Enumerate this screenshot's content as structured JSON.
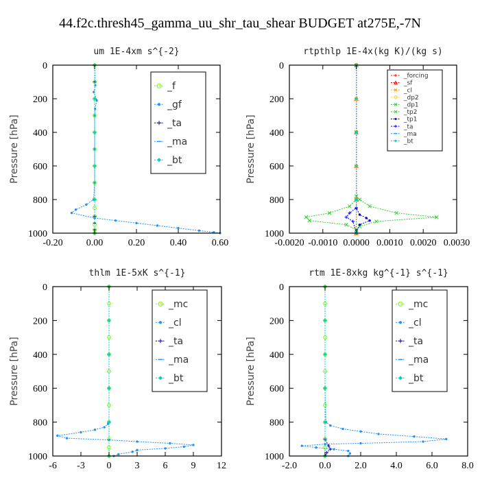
{
  "figure_title": "44.f2c.thresh45_gamma_uu_shr_tau_shear  BUDGET at275E,-7N",
  "chart_data": [
    {
      "type": "line",
      "title": "um   1E-4xm s^{-2}",
      "ylabel": "Pressure [hPa]",
      "xlim": [
        -0.2,
        0.6
      ],
      "ylim": [
        1000,
        0
      ],
      "xticks": [
        -0.2,
        0.0,
        0.2,
        0.4,
        0.6
      ],
      "xtick_labels": [
        "-0.20",
        "0.00",
        "0.20",
        "0.40",
        "0.60"
      ],
      "yticks": [
        0,
        200,
        400,
        600,
        800,
        1000
      ],
      "ytick_labels": [
        "0",
        "200",
        "400",
        "600",
        "800",
        "1000"
      ],
      "legend_position": "top-right",
      "series": [
        {
          "name": "_f",
          "color": "#7cfc00",
          "marker": "circle",
          "x": [
            0,
            0,
            0,
            0,
            0,
            0,
            0,
            0,
            0,
            0,
            0,
            0,
            0,
            0
          ],
          "y": [
            0,
            100,
            200,
            300,
            400,
            500,
            600,
            700,
            800,
            850,
            900,
            950,
            980,
            1000
          ]
        },
        {
          "name": "_gf",
          "color": "#1e90ff",
          "marker": "dot",
          "x": [
            0,
            0.003,
            -0.004,
            0.01,
            0.002,
            0,
            0,
            0,
            -0.005,
            -0.04,
            -0.09,
            -0.11,
            0.0,
            0.1,
            0.2,
            0.3,
            0.4,
            0.5,
            0.57,
            0.6
          ],
          "y": [
            0,
            120,
            160,
            210,
            260,
            300,
            500,
            700,
            800,
            830,
            860,
            880,
            910,
            925,
            940,
            955,
            970,
            985,
            995,
            1000
          ]
        },
        {
          "name": "_ta",
          "color": "#0000cd",
          "marker": "plus",
          "x": [
            0,
            0,
            0,
            0,
            0,
            0,
            0,
            0,
            0,
            0
          ],
          "y": [
            0,
            100,
            200,
            400,
            600,
            800,
            900,
            940,
            980,
            1000
          ]
        },
        {
          "name": "_ma",
          "color": "#1e90ff",
          "marker": "dash",
          "x": [
            0,
            0,
            0,
            0,
            0,
            0
          ],
          "y": [
            0,
            200,
            400,
            600,
            800,
            1000
          ]
        },
        {
          "name": "_bt",
          "color": "#00ced1",
          "marker": "diamond",
          "x": [
            0,
            0,
            0,
            0,
            0,
            0
          ],
          "y": [
            0,
            200,
            400,
            600,
            800,
            1000
          ]
        }
      ]
    },
    {
      "type": "line",
      "title": "rtpthlp   1E-4x(kg K)/(kg s)",
      "ylabel": "Pressure [hPa]",
      "xlim": [
        -0.002,
        0.003
      ],
      "ylim": [
        1000,
        0
      ],
      "xticks": [
        -0.002,
        -0.001,
        0.0,
        0.001,
        0.002,
        0.003
      ],
      "xtick_labels": [
        "-0.0020",
        "-0.0010",
        "0.0000",
        "0.0010",
        "0.0020",
        "0.0030"
      ],
      "yticks": [
        0,
        200,
        400,
        600,
        800,
        1000
      ],
      "ytick_labels": [
        "0",
        "200",
        "400",
        "600",
        "800",
        "1000"
      ],
      "legend_position": "top-right",
      "series": [
        {
          "name": "_forcing",
          "color": "#ff0000",
          "marker": "plus",
          "x": [
            0,
            0,
            0,
            0,
            0,
            0
          ],
          "y": [
            0,
            200,
            400,
            600,
            800,
            1000
          ]
        },
        {
          "name": "_sf",
          "color": "#ff0000",
          "marker": "triangle",
          "x": [
            0,
            0,
            0,
            0,
            0,
            0
          ],
          "y": [
            0,
            200,
            400,
            600,
            800,
            1000
          ]
        },
        {
          "name": "_cl",
          "color": "#ffa500",
          "marker": "star",
          "x": [
            0,
            0,
            0,
            0,
            0,
            0
          ],
          "y": [
            0,
            200,
            400,
            600,
            800,
            1000
          ]
        },
        {
          "name": "_dp2",
          "color": "#ffd700",
          "marker": "circle",
          "x": [
            0,
            0,
            0,
            0,
            0,
            0
          ],
          "y": [
            0,
            200,
            400,
            600,
            800,
            1000
          ]
        },
        {
          "name": "_dp1",
          "color": "#32cd32",
          "marker": "x",
          "x": [
            0,
            0,
            0,
            0.0001,
            0.0004,
            0.0012,
            0.0024,
            0.0006,
            0.0001,
            0,
            0
          ],
          "y": [
            0,
            400,
            780,
            800,
            840,
            880,
            905,
            930,
            960,
            980,
            1000
          ]
        },
        {
          "name": "_tp2",
          "color": "#32cd32",
          "marker": "x",
          "x": [
            0,
            0,
            0,
            -0.0002,
            -0.0008,
            -0.0015,
            -0.0014,
            -0.0003,
            0,
            0
          ],
          "y": [
            0,
            400,
            800,
            840,
            880,
            905,
            925,
            950,
            980,
            1000
          ]
        },
        {
          "name": "_tp1",
          "color": "#0000cd",
          "marker": "dot",
          "x": [
            0,
            0,
            0.0001,
            0.0003,
            0.0004,
            0.0001,
            0
          ],
          "y": [
            0,
            850,
            890,
            910,
            925,
            950,
            1000
          ]
        },
        {
          "name": "_ta",
          "color": "#0000ff",
          "marker": "plus",
          "x": [
            0,
            0,
            -0.0002,
            -0.0003,
            -0.0001,
            0
          ],
          "y": [
            0,
            850,
            880,
            905,
            930,
            1000
          ]
        },
        {
          "name": "_ma",
          "color": "#1e90ff",
          "marker": "dash",
          "x": [
            0,
            0,
            0,
            0,
            0,
            0
          ],
          "y": [
            0,
            200,
            400,
            600,
            800,
            1000
          ]
        },
        {
          "name": "_bt",
          "color": "#00ced1",
          "marker": "diamond",
          "x": [
            0,
            0,
            0,
            0,
            0,
            0
          ],
          "y": [
            0,
            200,
            400,
            600,
            800,
            1000
          ]
        }
      ]
    },
    {
      "type": "line",
      "title": "thlm   1E-5xK s^{-1}",
      "ylabel": "Pressure [hPa]",
      "xlim": [
        -6,
        12
      ],
      "ylim": [
        1000,
        0
      ],
      "xticks": [
        -6,
        -3,
        0,
        3,
        6,
        9,
        12
      ],
      "xtick_labels": [
        "-6",
        "-3",
        "0",
        "3",
        "6",
        "9",
        "12"
      ],
      "yticks": [
        0,
        200,
        400,
        600,
        800,
        1000
      ],
      "ytick_labels": [
        "0",
        "200",
        "400",
        "600",
        "800",
        "1000"
      ],
      "legend_position": "top-right",
      "series": [
        {
          "name": "_mc",
          "color": "#7cfc00",
          "marker": "circle",
          "x": [
            0,
            0,
            0,
            0,
            0,
            0,
            0,
            0,
            0,
            0,
            0,
            0
          ],
          "y": [
            0,
            100,
            200,
            300,
            400,
            500,
            600,
            700,
            800,
            900,
            950,
            1000
          ]
        },
        {
          "name": "_cl",
          "color": "#1e90ff",
          "marker": "dot",
          "x": [
            0,
            0,
            0,
            -0.1,
            -0.5,
            -1.5,
            -3,
            -5.5,
            -4.5,
            0,
            3,
            6.5,
            9,
            8,
            6,
            3,
            2.5,
            1,
            0.5
          ],
          "y": [
            0,
            600,
            800,
            810,
            830,
            845,
            860,
            880,
            895,
            905,
            915,
            925,
            935,
            945,
            955,
            965,
            975,
            990,
            1000
          ]
        },
        {
          "name": "_ta",
          "color": "#0000cd",
          "marker": "plus",
          "x": [
            0,
            0,
            0,
            0,
            0,
            0
          ],
          "y": [
            0,
            200,
            400,
            600,
            800,
            1000
          ]
        },
        {
          "name": "_ma",
          "color": "#1e90ff",
          "marker": "dash",
          "x": [
            0,
            0,
            0,
            0,
            0,
            0
          ],
          "y": [
            0,
            200,
            400,
            600,
            800,
            1000
          ]
        },
        {
          "name": "_bt",
          "color": "#00ced1",
          "marker": "diamond",
          "x": [
            0,
            0,
            0,
            0,
            0,
            0
          ],
          "y": [
            0,
            200,
            400,
            600,
            800,
            1000
          ]
        }
      ]
    },
    {
      "type": "line",
      "title": "rtm   1E-8xkg kg^{-1} s^{-1}",
      "ylabel": "Pressure [hPa]",
      "xlim": [
        -2,
        8
      ],
      "ylim": [
        1000,
        0
      ],
      "xticks": [
        -2,
        0,
        2,
        4,
        6,
        8
      ],
      "xtick_labels": [
        "-2.0",
        "0.0",
        "2.0",
        "4.0",
        "6.0",
        "8.0"
      ],
      "yticks": [
        0,
        200,
        400,
        600,
        800,
        1000
      ],
      "ytick_labels": [
        "0",
        "200",
        "400",
        "600",
        "800",
        "1000"
      ],
      "legend_position": "top-right",
      "series": [
        {
          "name": "_mc",
          "color": "#7cfc00",
          "marker": "circle",
          "x": [
            0,
            0,
            0,
            0,
            0,
            0,
            0,
            0,
            0,
            0,
            0,
            0
          ],
          "y": [
            0,
            100,
            200,
            300,
            400,
            500,
            600,
            700,
            800,
            900,
            950,
            1000
          ]
        },
        {
          "name": "_cl",
          "color": "#1e90ff",
          "marker": "dot",
          "x": [
            0,
            0,
            0.05,
            0.3,
            1,
            2,
            3,
            5,
            6.8,
            5.5,
            2,
            0,
            -1.3,
            -0.5,
            0.5,
            1.3,
            1.4,
            1.3
          ],
          "y": [
            0,
            600,
            800,
            820,
            840,
            855,
            870,
            885,
            900,
            915,
            925,
            930,
            940,
            950,
            960,
            970,
            985,
            1000
          ]
        },
        {
          "name": "_ta",
          "color": "#0000cd",
          "marker": "plus",
          "x": [
            0,
            0,
            0,
            0,
            0.2,
            0.3,
            0.1,
            0
          ],
          "y": [
            0,
            200,
            600,
            900,
            940,
            960,
            980,
            1000
          ]
        },
        {
          "name": "_ma",
          "color": "#1e90ff",
          "marker": "dash",
          "x": [
            0,
            0,
            0,
            0,
            0,
            0
          ],
          "y": [
            0,
            200,
            400,
            600,
            800,
            1000
          ]
        },
        {
          "name": "_bt",
          "color": "#00ced1",
          "marker": "diamond",
          "x": [
            0,
            0,
            0,
            0,
            0,
            0
          ],
          "y": [
            0,
            200,
            400,
            600,
            800,
            1000
          ]
        }
      ]
    }
  ]
}
